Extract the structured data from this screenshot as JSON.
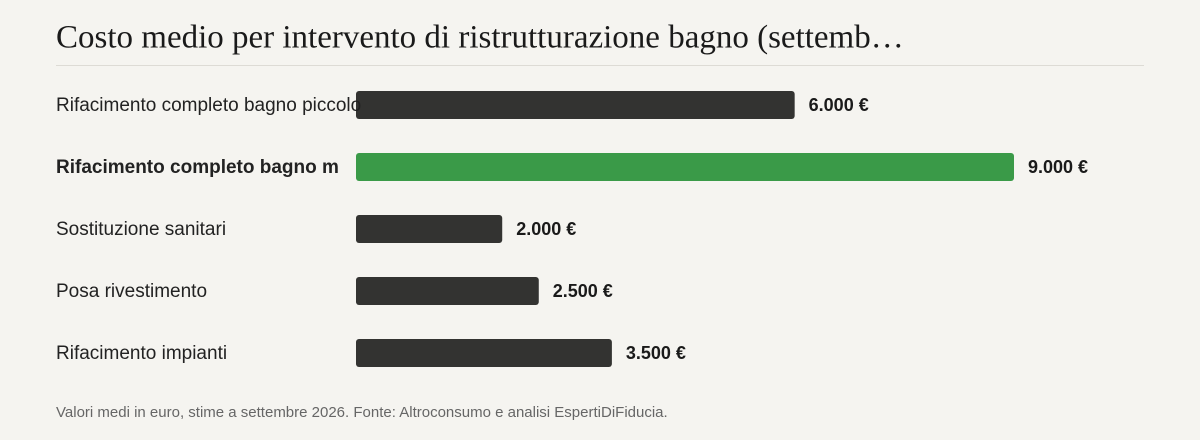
{
  "chart_data": {
    "type": "bar",
    "orientation": "horizontal",
    "title": "Costo medio per intervento di ristrutturazione bagno (settemb…",
    "categories": [
      "Rifacimento completo bagno piccolo",
      "Rifacimento completo bagno m",
      "Sostituzione sanitari",
      "Posa rivestimento",
      "Rifacimento impianti"
    ],
    "values": [
      6000,
      9000,
      2000,
      2500,
      3500
    ],
    "value_labels": [
      "6.000 €",
      "9.000 €",
      "2.000 €",
      "2.500 €",
      "3.500 €"
    ],
    "colors": [
      "#333331",
      "#3a9a48",
      "#333331",
      "#333331",
      "#333331"
    ],
    "note": "Valori medi in euro, stime a settembre 2026. Fonte: Altroconsumo e analisi EspertiDiFiducia."
  }
}
